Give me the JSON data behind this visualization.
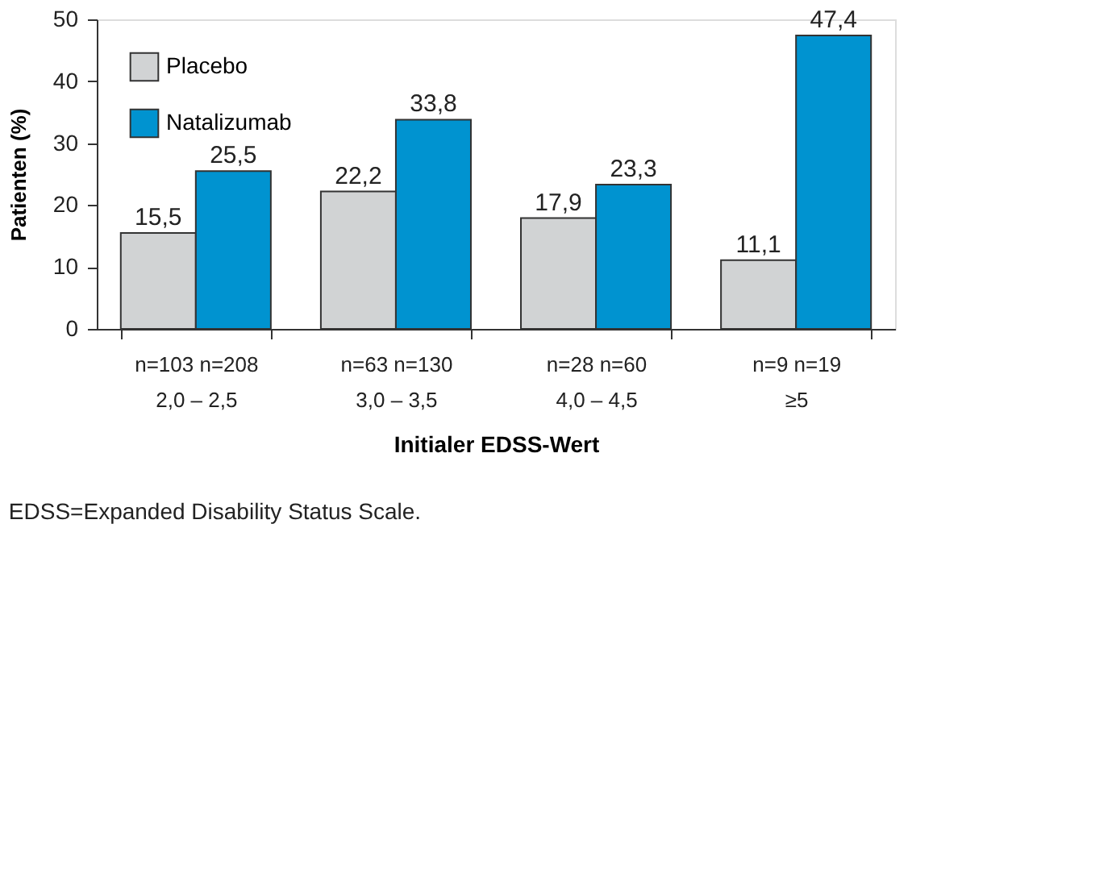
{
  "chart_data": {
    "type": "bar",
    "xlabel": "Initialer EDSS-Wert",
    "ylabel": "Patienten (%)",
    "categories": [
      "n=103  n=208\n2,0 – 2,5",
      "n=63  n=130\n3,0 – 3,5",
      "n=28  n=60\n4,0 – 4,5",
      "n=9    n=19\n≥5"
    ],
    "series": [
      {
        "name": "Placebo",
        "color": "#d1d3d4",
        "values": [
          15.5,
          22.2,
          17.9,
          11.1
        ],
        "value_labels": [
          "15,5",
          "22,2",
          "17,9",
          "11,1"
        ]
      },
      {
        "name": "Natalizumab",
        "color": "#0093d0",
        "values": [
          25.5,
          33.8,
          23.3,
          47.4
        ],
        "value_labels": [
          "25,5",
          "33,8",
          "23,3",
          "47,4"
        ]
      }
    ],
    "ylim": [
      0,
      50
    ],
    "yticks": [
      0,
      10,
      20,
      30,
      40,
      50
    ],
    "legend": "top left",
    "grid": false,
    "annotations": [
      "EDSS=Expanded Disability Status Scale."
    ]
  }
}
